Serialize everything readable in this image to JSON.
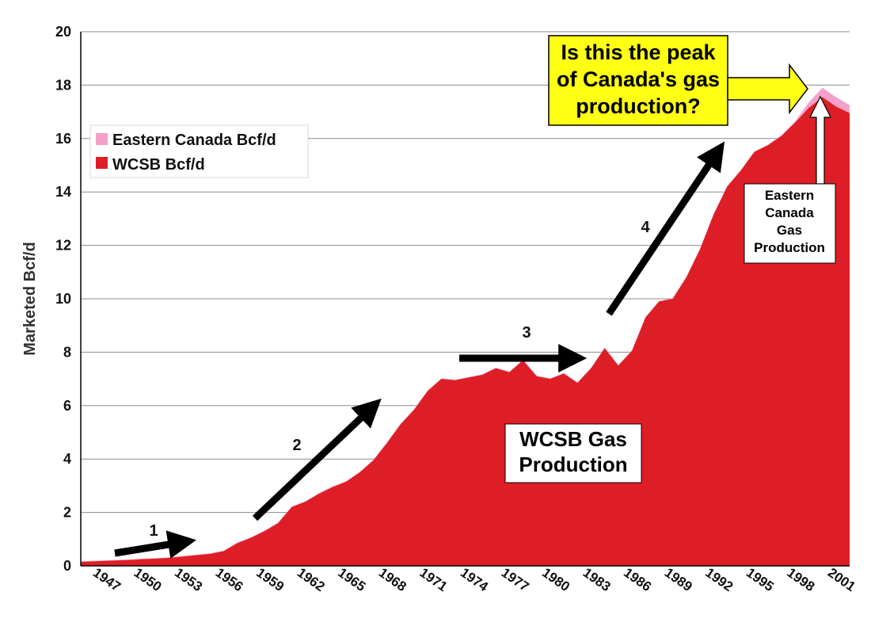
{
  "chart_data": {
    "type": "area",
    "stacked": true,
    "title": "",
    "xlabel": "",
    "ylabel": "Marketed  Bcf/d",
    "ylim": [
      0,
      20
    ],
    "yticks": [
      "0",
      "2",
      "4",
      "6",
      "8",
      "10",
      "12",
      "14",
      "16",
      "18",
      "20"
    ],
    "xlim": [
      1945.5,
      2002
    ],
    "xticks": [
      "1947",
      "1950",
      "1953",
      "1956",
      "1959",
      "1962",
      "1965",
      "1968",
      "1971",
      "1974",
      "1977",
      "1980",
      "1983",
      "1986",
      "1989",
      "1992",
      "1995",
      "1998",
      "2001"
    ],
    "grid": "horizontal",
    "legend_position": "left",
    "x": [
      1945.5,
      1947,
      1948,
      1949,
      1950,
      1951,
      1952,
      1953,
      1954,
      1955,
      1956,
      1957,
      1958,
      1959,
      1960,
      1961,
      1962,
      1963,
      1964,
      1965,
      1966,
      1967,
      1968,
      1969,
      1970,
      1971,
      1972,
      1973,
      1974,
      1975,
      1976,
      1977,
      1978,
      1979,
      1980,
      1981,
      1982,
      1983,
      1984,
      1985,
      1986,
      1987,
      1988,
      1989,
      1990,
      1991,
      1992,
      1993,
      1994,
      1995,
      1996,
      1997,
      1998,
      1999,
      2000,
      2001,
      2002
    ],
    "series": [
      {
        "name": "WCSB Bcf/d",
        "color": "#de1e26",
        "values": [
          0.15,
          0.18,
          0.2,
          0.22,
          0.25,
          0.27,
          0.3,
          0.35,
          0.4,
          0.45,
          0.55,
          0.85,
          1.05,
          1.3,
          1.6,
          2.2,
          2.4,
          2.7,
          2.95,
          3.15,
          3.5,
          3.95,
          4.6,
          5.3,
          5.85,
          6.55,
          7.0,
          6.95,
          7.05,
          7.15,
          7.4,
          7.25,
          7.7,
          7.1,
          7.0,
          7.2,
          6.85,
          7.4,
          8.15,
          7.5,
          8.05,
          9.3,
          9.9,
          10.0,
          10.8,
          11.85,
          13.15,
          14.2,
          14.8,
          15.5,
          15.75,
          16.1,
          16.6,
          17.15,
          17.55,
          17.2,
          16.95
        ]
      },
      {
        "name": "Eastern Canada Bcf/d",
        "color": "#f5a0c8",
        "values": [
          0.02,
          0.02,
          0.02,
          0.02,
          0.02,
          0.02,
          0.02,
          0.02,
          0.02,
          0.02,
          0.02,
          0.02,
          0.02,
          0.02,
          0.02,
          0.02,
          0.02,
          0.02,
          0.02,
          0.02,
          0.02,
          0.02,
          0.02,
          0.02,
          0.02,
          0.02,
          0.02,
          0.02,
          0.02,
          0.02,
          0.02,
          0.02,
          0.02,
          0.02,
          0.02,
          0.02,
          0.02,
          0.02,
          0.02,
          0.02,
          0.02,
          0.02,
          0.02,
          0.02,
          0.02,
          0.02,
          0.02,
          0.02,
          0.02,
          0.02,
          0.02,
          0.03,
          0.05,
          0.2,
          0.35,
          0.35,
          0.3
        ]
      }
    ],
    "annotations": {
      "arrow_labels": [
        "1",
        "2",
        "3",
        "4"
      ],
      "area_label_lines": [
        "WCSB Gas",
        "Production"
      ],
      "question_lines": [
        "Is this the peak",
        "of Canada's gas",
        "production?"
      ],
      "eastern_lines": [
        "Eastern",
        "Canada",
        "Gas",
        "Production"
      ],
      "question_box_color": "#ffff14"
    }
  }
}
